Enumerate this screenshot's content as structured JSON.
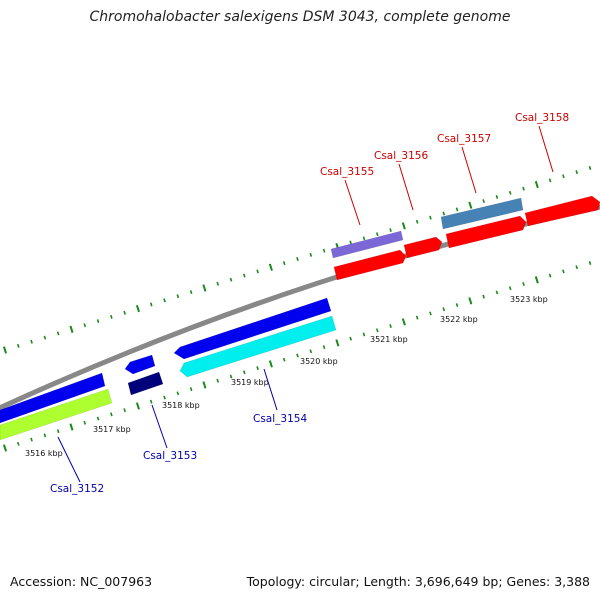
{
  "title": "Chromohalobacter salexigens DSM 3043, complete genome",
  "footer": {
    "accession": "Accession: NC_007963",
    "summary": "Topology: circular; Length: 3,696,649 bp; Genes: 3,388"
  },
  "colors": {
    "backbone": "#888888",
    "tick": "#1a8a1a",
    "forward_label": "#cc0000",
    "reverse_label": "#0000aa"
  },
  "kbp_labels": [
    "3516 kbp",
    "3517 kbp",
    "3518 kbp",
    "3519 kbp",
    "3520 kbp",
    "3521 kbp",
    "3522 kbp",
    "3523 kbp"
  ],
  "gene_labels": [
    {
      "id": "Csal_3152",
      "text": "Csal_3152",
      "strand": "reverse"
    },
    {
      "id": "Csal_3153",
      "text": "Csal_3153",
      "strand": "reverse"
    },
    {
      "id": "Csal_3154",
      "text": "Csal_3154",
      "strand": "reverse"
    },
    {
      "id": "Csal_3155",
      "text": "Csal_3155",
      "strand": "forward"
    },
    {
      "id": "Csal_3156",
      "text": "Csal_3156",
      "strand": "forward"
    },
    {
      "id": "Csal_3157",
      "text": "Csal_3157",
      "strand": "forward"
    },
    {
      "id": "Csal_3158",
      "text": "Csal_3158",
      "strand": "forward"
    }
  ],
  "features": [
    {
      "name": "feature-forward-top-1",
      "color": "#7b68d6"
    },
    {
      "name": "feature-forward-top-2",
      "color": "#4682b4"
    },
    {
      "name": "feature-forward-1",
      "color": "#ff0000"
    },
    {
      "name": "feature-forward-2",
      "color": "#ff0000"
    },
    {
      "name": "feature-forward-3",
      "color": "#ff0000"
    },
    {
      "name": "feature-forward-4",
      "color": "#ff0000"
    },
    {
      "name": "feature-reverse-1",
      "color": "#0000ee"
    },
    {
      "name": "feature-reverse-2",
      "color": "#0000ee"
    },
    {
      "name": "feature-reverse-3",
      "color": "#0000ee"
    },
    {
      "name": "feature-reverse-4",
      "color": "#00eeee"
    },
    {
      "name": "feature-reverse-5",
      "color": "#adff2f"
    },
    {
      "name": "feature-reverse-6",
      "color": "#00007a"
    }
  ]
}
